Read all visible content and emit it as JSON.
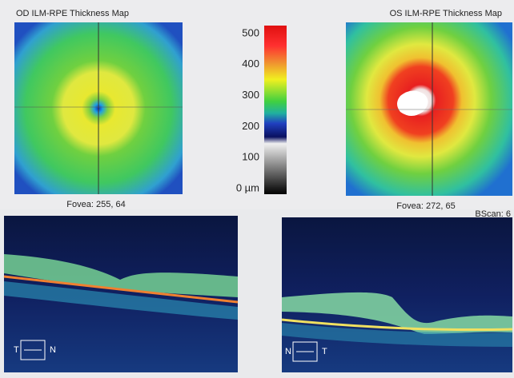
{
  "left_map": {
    "title": "OD ILM-RPE Thickness Map",
    "fovea": "Fovea: 255, 64"
  },
  "right_map": {
    "title": "OS ILM-RPE Thickness Map",
    "fovea": "Fovea: 272, 65"
  },
  "scale": {
    "labels": [
      "500",
      "400",
      "300",
      "200",
      "100",
      "0 µm"
    ]
  },
  "left_bscan": {
    "orientation": [
      "T",
      "N"
    ]
  },
  "right_bscan": {
    "header": "BScan: 6",
    "orientation": [
      "N",
      "T"
    ]
  }
}
